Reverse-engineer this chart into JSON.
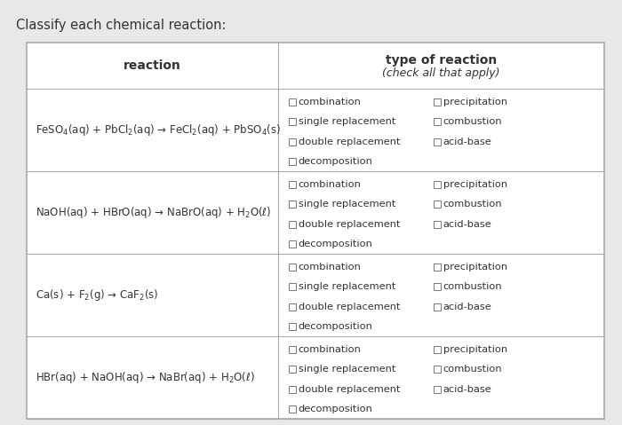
{
  "title": "Classify each chemical reaction:",
  "col1_header": "reaction",
  "col2_header_line1": "type of reaction",
  "col2_header_line2": "(check all that apply)",
  "reactions": [
    "FeSO$_4$(aq) + PbCl$_2$(aq) → FeCl$_2$(aq) + PbSO$_4$(s)",
    "NaOH(aq) + HBrO(aq) → NaBrO(aq) + H$_2$O(ℓ)",
    "Ca(s) + F$_2$(g) → CaF$_2$(s)",
    "HBr(aq) + NaOH(aq) → NaBr(aq) + H$_2$O(ℓ)"
  ],
  "checkboxes": [
    [
      "combination",
      "precipitation"
    ],
    [
      "single replacement",
      "combustion"
    ],
    [
      "double replacement",
      "acid-base"
    ],
    [
      "decomposition",
      ""
    ]
  ],
  "bg_color": "#e8e8e8",
  "table_bg": "#ffffff",
  "border_color": "#aaaaaa",
  "text_color": "#333333",
  "fig_width": 7.0,
  "fig_height": 4.79,
  "dpi": 100
}
